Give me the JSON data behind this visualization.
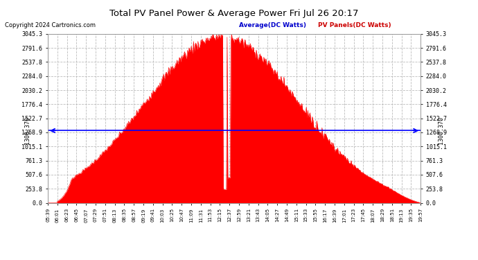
{
  "title": "Total PV Panel Power & Average Power Fri Jul 26 20:17",
  "copyright": "Copyright 2024 Cartronics.com",
  "legend_avg": "Average(DC Watts)",
  "legend_pv": "PV Panels(DC Watts)",
  "avg_value": 1300.37,
  "y_max": 3045.3,
  "y_ticks": [
    0.0,
    253.8,
    507.6,
    761.3,
    1015.1,
    1268.9,
    1522.7,
    1776.4,
    2030.2,
    2284.0,
    2537.8,
    2791.6,
    3045.3
  ],
  "avg_label": "1300.370",
  "x_tick_labels": [
    "05:39",
    "06:01",
    "06:23",
    "06:45",
    "07:07",
    "07:29",
    "07:51",
    "08:13",
    "08:35",
    "08:57",
    "09:19",
    "09:41",
    "10:03",
    "10:25",
    "10:47",
    "11:09",
    "11:31",
    "11:53",
    "12:15",
    "12:37",
    "12:59",
    "13:21",
    "13:43",
    "14:05",
    "14:27",
    "14:49",
    "15:11",
    "15:33",
    "15:55",
    "16:17",
    "16:39",
    "17:01",
    "17:23",
    "17:45",
    "18:07",
    "18:29",
    "18:51",
    "19:13",
    "19:35",
    "19:57"
  ],
  "fill_color": "#ff0000",
  "avg_line_color": "#0000ff",
  "background_color": "#ffffff",
  "grid_color": "#bbbbbb",
  "title_color": "#000000",
  "copyright_color": "#000000",
  "legend_avg_color": "#0000cc",
  "legend_pv_color": "#cc0000"
}
